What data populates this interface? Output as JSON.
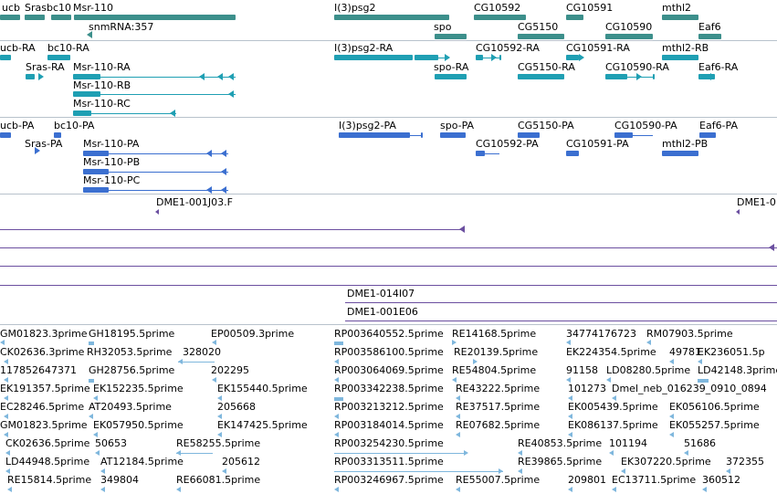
{
  "genes": [
    "ucb",
    "Srasbc10",
    "Msr-110",
    "I(3)psg2",
    "CG10592",
    "CG10591",
    "mthl2",
    "snmRNA:357",
    "spo",
    "CG5150",
    "CG10590",
    "Eaf6"
  ],
  "transcripts": [
    "ucb-RA",
    "bc10-RA",
    "Sras-RA",
    "Msr-110-RA",
    "Msr-110-RB",
    "Msr-110-RC",
    "I(3)psg2-RA",
    "CG10592-RA",
    "CG10591-RA",
    "mthl2-RB",
    "spo-RA",
    "CG5150-RA",
    "CG10590-RA",
    "Eaf6-RA"
  ],
  "polypeptides": [
    "ucb-PA",
    "bc10-PA",
    "Sras-PA",
    "Msr-110-PA",
    "Msr-110-PB",
    "Msr-110-PC",
    "I(3)psg2-PA",
    "spo-PA",
    "CG5150-PA",
    "CG10590-PA",
    "Eaf6-PA",
    "CG10592-PA",
    "CG10591-PA",
    "mthl2-PB"
  ],
  "clones": [
    "DME1-001J03.F",
    "DME1-0",
    "DME1-014I07",
    "DME1-001E06"
  ],
  "est_rows": [
    [
      "GM01823.3prime",
      "GH18195.5prime",
      "EP00509.3prime",
      "RP003640552.5prime",
      "RE14168.5prime",
      "34774176723",
      "RM07903.5prime"
    ],
    [
      "CK02636.3prime",
      "RH32053.5prime",
      "328020",
      "RP003586100.5prime",
      "RE20139.5prime",
      "EK224354.5prime",
      "49781",
      "EK236051.5p"
    ],
    [
      "117852647371",
      "GH28756.5prime",
      "202295",
      "RP003064069.5prime",
      "RE54804.5prime",
      "91158",
      "LD08280.5prime",
      "LD42148.3prime"
    ],
    [
      "EK191357.5prime",
      "EK152235.5prime",
      "EK155440.5prime",
      "RP003342238.5prime",
      "RE43222.5prime",
      "101273",
      "Dmel_neb_016239_0910_0894"
    ],
    [
      "EC28246.5prime",
      "AT20493.5prime",
      "205668",
      "RP003213212.5prime",
      "RE37517.5prime",
      "EK005439.5prime",
      "EK056106.5prime"
    ],
    [
      "GM01823.5prime",
      "EK057950.5prime",
      "EK147425.5prime",
      "RP003184014.5prime",
      "RE07682.5prime",
      "EK086137.5prime",
      "EK055257.5prime"
    ],
    [
      "CK02636.5prime",
      "50653",
      "RE58255.5prime",
      "RP003254230.5prime",
      "RE40853.5prime",
      "101194",
      "51686"
    ],
    [
      "LD44948.5prime",
      "AT12184.5prime",
      "205612",
      "RP003313511.5prime",
      "RE39865.5prime",
      "EK307220.5prime",
      "372355"
    ],
    [
      "RE15814.5prime",
      "349804",
      "RE66081.5prime",
      "RP003246967.5prime",
      "RE55007.5prime",
      "209801",
      "EC13711.5prime",
      "360512"
    ]
  ],
  "colors": {
    "gene": "#3c8f8b",
    "transcript": "#1f9fb3",
    "polypeptide": "#3b6fd0",
    "clone": "#6b4fa0",
    "est": "#7fb7dd",
    "separator": "#b8c2cc"
  }
}
